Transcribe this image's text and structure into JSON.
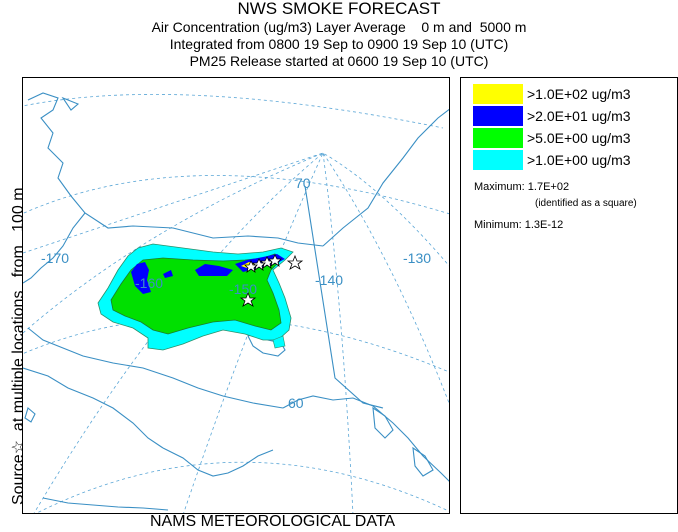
{
  "header": {
    "title": "NWS SMOKE FORECAST",
    "line2": "Air Concentration (ug/m3) Layer Average    0 m and  5000 m",
    "line3": "Integrated from 0800 19 Sep to 0900 19 Sep 10 (UTC)",
    "line4": "PM25 Release started at 0600 19 Sep 10 (UTC)"
  },
  "side_label": "Source☆  at multiple locations   from   100 m",
  "footer": "NAMS METEOROLOGICAL DATA",
  "map": {
    "longitude_labels": [
      "-170",
      "-160",
      "-150",
      "-140",
      "-130"
    ],
    "latitude_labels": [
      "70",
      "60"
    ],
    "colors": {
      "coast": "#3a8fc4",
      "grid": "#5aa6d6",
      "level_1": "#00ffff",
      "level_2": "#00e000",
      "level_3": "#0000ff",
      "level_4": "#ffff00"
    }
  },
  "legend": {
    "items": [
      {
        "label": ">1.0E+02 ug/m3",
        "color": "#ffff00"
      },
      {
        "label": ">2.0E+01 ug/m3",
        "color": "#0000ff"
      },
      {
        "label": ">5.0E+00 ug/m3",
        "color": "#00ff00"
      },
      {
        "label": ">1.0E+00 ug/m3",
        "color": "#00ffff"
      }
    ],
    "maximum": "Maximum: 1.7E+02",
    "maximum_note": "(identified as a square)",
    "minimum": "Minimum: 1.3E-12"
  }
}
